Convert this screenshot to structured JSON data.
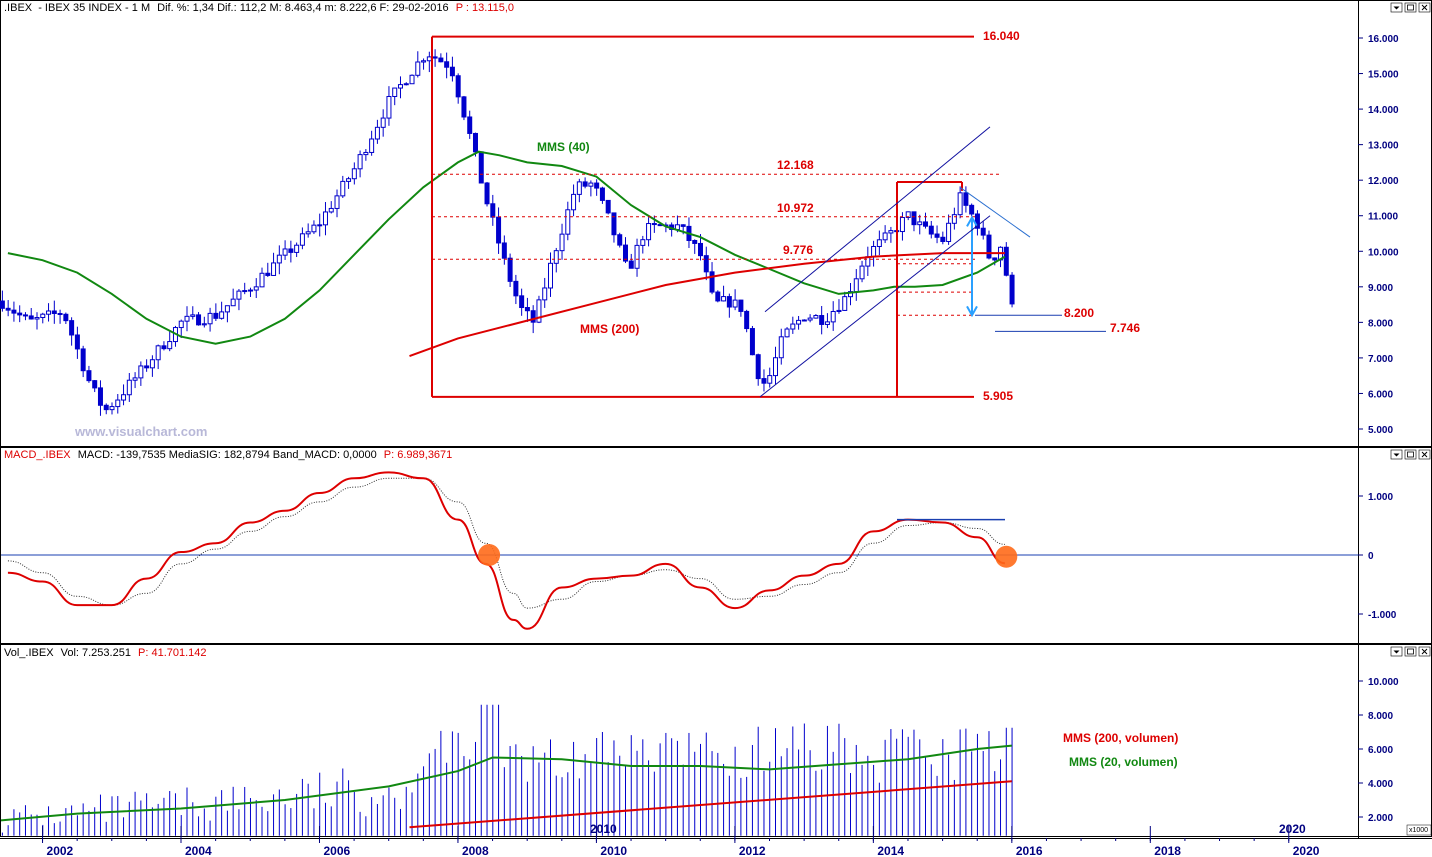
{
  "panels": {
    "price": {
      "header": {
        "symbol": ".IBEX",
        "name": "IBEX 35 INDEX",
        "period": "1 M",
        "stats": "Dif. %: 1,34  Dif.: 112,2  M: 8.463,4  m: 8.222,6  F: 29-02-2016",
        "price": "P : 13.115,0"
      },
      "watermark": "www.visualchart.com",
      "annotations": {
        "mms40": "MMS (40)",
        "mms200": "MMS (200)",
        "level_16040": "16.040",
        "level_12168": "12.168",
        "level_10972": "10.972",
        "level_9776": "9.776",
        "level_8200": "8.200",
        "level_7746": "7.746",
        "level_5905": "5.905"
      }
    },
    "macd": {
      "header": {
        "name": "MACD_.IBEX",
        "values": "MACD: -139,7535  MediaSIG: 182,8794  Band_MACD: 0,0000",
        "price": "P: 6.989,3671"
      }
    },
    "volume": {
      "header": {
        "name": "Vol_.IBEX",
        "values": "Vol: 7.253.251",
        "price": "P: 41.701.142"
      },
      "legend": {
        "mms200": "MMS (200, volumen)",
        "mms20": "MMS (20, volumen)"
      },
      "axis_unit": "x1000",
      "inner_year_labels": [
        "2010",
        "2020"
      ]
    }
  },
  "colors": {
    "candle": "#0000cc",
    "mms200": "#dd0000",
    "mms40": "#118811",
    "axis": "#000080",
    "channel": "#1010a0",
    "macd_signal": "#333333",
    "marker": "#ff6a1a"
  },
  "chart_data": [
    {
      "type": "candlestick",
      "title": ".IBEX - IBEX 35 INDEX - 1 M",
      "x_ticks": [
        "2002",
        "2004",
        "2006",
        "2008",
        "2010",
        "2012",
        "2014",
        "2016",
        "2018",
        "2020"
      ],
      "y_ticks": [
        "5.000",
        "6.000",
        "7.000",
        "8.000",
        "9.000",
        "10.000",
        "11.000",
        "12.000",
        "13.000",
        "14.000",
        "15.000",
        "16.000"
      ],
      "ylim": [
        4600,
        16400
      ],
      "xlim": [
        2001.4,
        2021.0
      ],
      "series": [
        {
          "name": "MMS (40)",
          "type": "line",
          "x": [
            2001.5,
            2002.0,
            2002.5,
            2003.0,
            2003.5,
            2004.0,
            2004.5,
            2005.0,
            2005.5,
            2006.0,
            2006.5,
            2007.0,
            2007.5,
            2008.0,
            2008.3,
            2008.6,
            2009.0,
            2009.5,
            2010.0,
            2010.5,
            2011.0,
            2011.5,
            2012.0,
            2012.5,
            2013.0,
            2013.5,
            2014.0,
            2014.3,
            2014.6,
            2015.0,
            2015.5,
            2015.9
          ],
          "y": [
            9950,
            9750,
            9400,
            8800,
            8100,
            7600,
            7400,
            7600,
            8100,
            8900,
            9900,
            10900,
            11800,
            12500,
            12800,
            12700,
            12500,
            12400,
            12100,
            11300,
            10700,
            10400,
            9900,
            9500,
            9100,
            8800,
            8900,
            9000,
            9000,
            9050,
            9400,
            9850
          ]
        },
        {
          "name": "MMS (200)",
          "type": "line",
          "x": [
            2007.3,
            2008.0,
            2009.0,
            2010.0,
            2011.0,
            2012.0,
            2013.0,
            2014.0,
            2015.0,
            2015.9
          ],
          "y": [
            7050,
            7550,
            8050,
            8550,
            9050,
            9400,
            9650,
            9850,
            9950,
            9950
          ]
        }
      ],
      "levels": [
        16040,
        12168,
        10972,
        9776,
        8200,
        7746,
        5905
      ]
    },
    {
      "type": "line",
      "title": "MACD_.IBEX",
      "y_ticks": [
        "1.000",
        "0",
        "-1.000"
      ],
      "ylim": [
        -1500,
        1500
      ],
      "series": [
        {
          "name": "MACD",
          "x": [
            2001.5,
            2002.0,
            2002.5,
            2003.0,
            2003.5,
            2004.0,
            2004.5,
            2005.0,
            2005.5,
            2006.0,
            2006.5,
            2007.0,
            2007.5,
            2008.0,
            2008.4,
            2008.8,
            2009.0,
            2009.5,
            2010.0,
            2010.5,
            2011.0,
            2011.5,
            2012.0,
            2012.5,
            2013.0,
            2013.5,
            2014.0,
            2014.5,
            2015.0,
            2015.5,
            2015.9
          ],
          "y": [
            -300,
            -450,
            -850,
            -850,
            -400,
            50,
            200,
            550,
            750,
            1050,
            1300,
            1400,
            1300,
            600,
            -150,
            -1100,
            -1250,
            -550,
            -400,
            -350,
            -150,
            -550,
            -900,
            -600,
            -350,
            -150,
            400,
            600,
            550,
            300,
            -140
          ]
        },
        {
          "name": "MediaSIG",
          "x": [
            2001.5,
            2002.0,
            2002.5,
            2003.0,
            2003.5,
            2004.0,
            2004.5,
            2005.0,
            2005.5,
            2006.0,
            2006.5,
            2007.0,
            2007.5,
            2008.0,
            2008.4,
            2008.8,
            2009.0,
            2009.5,
            2010.0,
            2010.5,
            2011.0,
            2011.5,
            2012.0,
            2012.5,
            2013.0,
            2013.5,
            2014.0,
            2014.5,
            2015.0,
            2015.5,
            2015.9
          ],
          "y": [
            -100,
            -300,
            -700,
            -850,
            -650,
            -150,
            100,
            400,
            650,
            900,
            1150,
            1300,
            1300,
            900,
            200,
            -650,
            -900,
            -750,
            -450,
            -350,
            -250,
            -400,
            -750,
            -700,
            -500,
            -300,
            200,
            500,
            550,
            450,
            180
          ]
        }
      ]
    },
    {
      "type": "bar",
      "title": "Vol_.IBEX",
      "y_ticks": [
        "2.000",
        "4.000",
        "6.000",
        "8.000",
        "10.000"
      ],
      "ylim": [
        900,
        11200
      ],
      "series": [
        {
          "name": "MMS (200, volumen)",
          "type": "line",
          "x": [
            2007.3,
            2016.0
          ],
          "y": [
            1400,
            4100
          ]
        },
        {
          "name": "MMS (20, volumen)",
          "type": "line",
          "x": [
            2001.4,
            2002.5,
            2004.0,
            2005.5,
            2007.0,
            2008.0,
            2008.5,
            2009.5,
            2010.5,
            2011.5,
            2012.5,
            2013.5,
            2014.5,
            2015.5,
            2016.0
          ],
          "y": [
            1800,
            2200,
            2500,
            3000,
            3800,
            4700,
            5500,
            5400,
            5000,
            5000,
            4800,
            5100,
            5400,
            6000,
            6200
          ]
        }
      ]
    }
  ]
}
